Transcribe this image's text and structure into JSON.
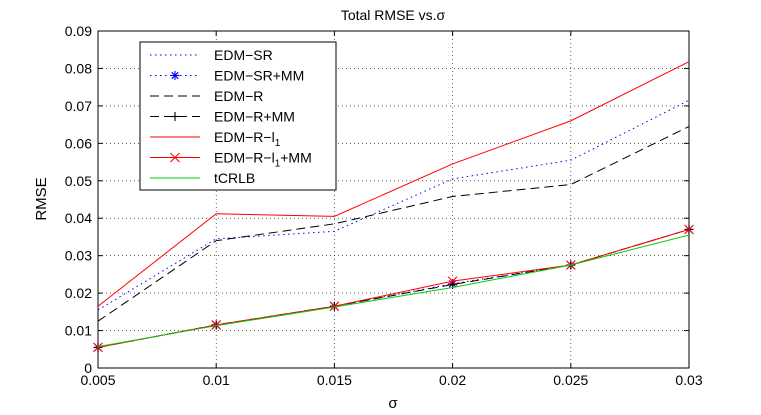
{
  "chart_data": {
    "type": "line",
    "title": "Total RMSE vs.σ",
    "xlabel": "σ",
    "ylabel": "RMSE",
    "xlim": [
      0.005,
      0.03
    ],
    "ylim": [
      0,
      0.09
    ],
    "grid": true,
    "legend_position": "top-left",
    "x": [
      0.005,
      0.01,
      0.015,
      0.02,
      0.025,
      0.03
    ],
    "x_tick_labels": [
      "0.005",
      "0.01",
      "0.015",
      "0.02",
      "0.025",
      "0.03"
    ],
    "y_ticks": [
      0,
      0.01,
      0.02,
      0.03,
      0.04,
      0.05,
      0.06,
      0.07,
      0.08,
      0.09
    ],
    "y_tick_labels": [
      "0",
      "0.01",
      "0.02",
      "0.03",
      "0.04",
      "0.05",
      "0.06",
      "0.07",
      "0.08",
      "0.09"
    ],
    "series": [
      {
        "name": "EDM−SR",
        "legend_main": "EDM−SR",
        "legend_sub": "",
        "legend_tail": "",
        "color": "#0000ff",
        "dash": "dotted",
        "marker": "none",
        "values": [
          0.0155,
          0.0345,
          0.0365,
          0.0505,
          0.0555,
          0.0715
        ]
      },
      {
        "name": "EDM−SR+MM",
        "legend_main": "EDM−SR+MM",
        "legend_sub": "",
        "legend_tail": "",
        "color": "#0000ff",
        "dash": "dotted",
        "marker": "asterisk",
        "values": [
          0.0055,
          0.0115,
          0.0165,
          0.0225,
          0.0275,
          0.037
        ]
      },
      {
        "name": "EDM−R",
        "legend_main": "EDM−R",
        "legend_sub": "",
        "legend_tail": "",
        "color": "#000000",
        "dash": "dashed",
        "marker": "none",
        "values": [
          0.0125,
          0.034,
          0.0385,
          0.0458,
          0.049,
          0.0645
        ]
      },
      {
        "name": "EDM−R+MM",
        "legend_main": "EDM−R+MM",
        "legend_sub": "",
        "legend_tail": "",
        "color": "#000000",
        "dash": "dashed",
        "marker": "plus",
        "values": [
          0.0055,
          0.0115,
          0.0165,
          0.0223,
          0.0275,
          0.037
        ]
      },
      {
        "name": "EDM−R−l1",
        "legend_main": "EDM−R−l",
        "legend_sub": "1",
        "legend_tail": "",
        "color": "#ff0000",
        "dash": "solid",
        "marker": "none",
        "values": [
          0.0165,
          0.0412,
          0.0405,
          0.0545,
          0.066,
          0.0818
        ]
      },
      {
        "name": "EDM−R−l1+MM",
        "legend_main": "EDM−R−l",
        "legend_sub": "1",
        "legend_tail": "+MM",
        "color": "#ff0000",
        "dash": "solid",
        "marker": "x",
        "values": [
          0.0055,
          0.0115,
          0.0165,
          0.0232,
          0.0275,
          0.037
        ]
      },
      {
        "name": "tCRLB",
        "legend_main": "tCRLB",
        "legend_sub": "",
        "legend_tail": "",
        "color": "#00cc00",
        "dash": "solid",
        "marker": "none",
        "values": [
          0.0057,
          0.0113,
          0.0163,
          0.0215,
          0.0275,
          0.0355
        ]
      }
    ]
  }
}
